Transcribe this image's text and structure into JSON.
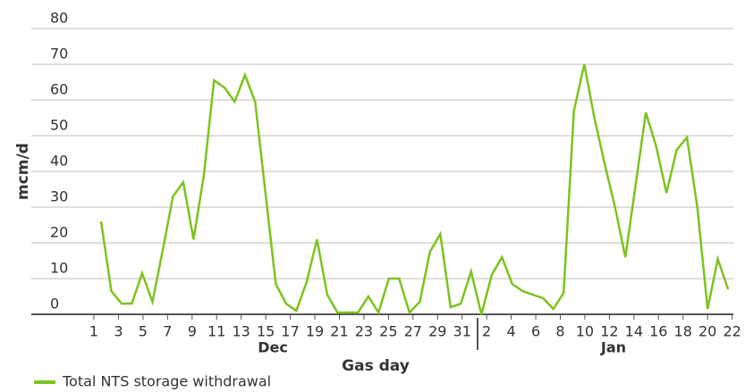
{
  "chart_data": {
    "type": "line",
    "y_label": "mcm/d",
    "x_label": "Gas day",
    "months": [
      "Dec",
      "Jan"
    ],
    "legend_position": "bottom-left",
    "grid": true,
    "xlim": [
      -4.1,
      53.1
    ],
    "xticks": [
      1,
      3,
      5,
      7,
      9,
      11,
      13,
      15,
      17,
      19,
      21,
      23,
      25,
      27,
      29,
      31,
      {
        "value": 33,
        "label": "2"
      },
      {
        "value": 35,
        "label": "4"
      },
      {
        "value": 37,
        "label": "6"
      },
      {
        "value": 39,
        "label": "8"
      },
      {
        "value": 41,
        "label": "10"
      },
      {
        "value": 43,
        "label": "12"
      },
      {
        "value": 45,
        "label": "14"
      },
      {
        "value": 47,
        "label": "16"
      },
      {
        "value": 49,
        "label": "18"
      },
      {
        "value": 51,
        "label": "20"
      },
      {
        "value": 53,
        "label": "22"
      }
    ],
    "ylim": [
      0,
      80
    ],
    "yticks": [
      0,
      10,
      20,
      30,
      40,
      50,
      60,
      70,
      80
    ],
    "x": [
      1.58,
      2.42,
      3.26,
      4.09,
      4.93,
      5.77,
      6.61,
      7.44,
      8.28,
      9.12,
      9.96,
      10.79,
      11.63,
      12.47,
      13.31,
      14.14,
      14.98,
      15.82,
      16.66,
      17.49,
      18.33,
      19.17,
      20.01,
      20.84,
      21.68,
      22.52,
      23.36,
      24.19,
      25.03,
      25.87,
      26.71,
      27.55,
      28.38,
      29.22,
      30.06,
      30.9,
      31.73,
      32.57,
      33.41,
      34.25,
      35.08,
      35.92,
      36.76,
      37.6,
      38.43,
      39.27,
      40.11,
      40.95,
      41.78,
      42.62,
      43.46,
      44.3,
      45.13,
      45.97,
      46.81,
      47.65,
      48.48,
      49.32,
      50.16,
      51.0,
      51.83,
      52.67
    ],
    "series": [
      {
        "name": "Total NTS storage withdrawal",
        "color": "#7cc31e",
        "values": [
          26,
          6.5,
          3,
          3,
          11.5,
          3.5,
          18,
          33,
          37,
          21,
          39,
          65.5,
          63.5,
          59.5,
          67,
          59.5,
          34,
          8.5,
          3,
          1,
          9,
          21,
          5.5,
          0.5,
          0.5,
          0.5,
          5,
          0.5,
          10,
          10,
          0.5,
          3.5,
          17.5,
          22.5,
          2,
          3,
          12,
          0,
          11,
          16,
          8.5,
          6.5,
          5.5,
          4.5,
          1.5,
          6,
          57,
          70,
          55,
          42,
          30,
          16,
          36,
          56.5,
          47,
          34,
          46,
          49.5,
          30,
          1.5,
          15.5,
          7
        ]
      }
    ]
  }
}
